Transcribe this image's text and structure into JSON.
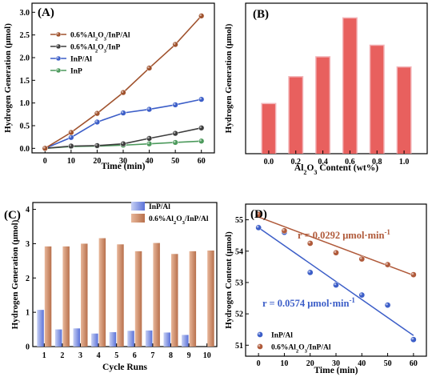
{
  "chart_data": [
    {
      "panel": "(A)",
      "type": "line",
      "xlabel": "Time (min)",
      "ylabel": "Hydrogen Generation (μmol)",
      "xlim": [
        -5,
        65
      ],
      "ylim": [
        -0.1,
        3.2
      ],
      "x": [
        0,
        10,
        20,
        30,
        40,
        50,
        60
      ],
      "xticks": [
        "0",
        "10",
        "20",
        "30",
        "40",
        "50",
        "60"
      ],
      "yticks": [
        "0.0",
        "0.5",
        "1.0",
        "1.5",
        "2.0",
        "2.5",
        "3.0"
      ],
      "legend_position": "top-left",
      "series": [
        {
          "name": "0.6%Al2O3/InP/Al",
          "color": "#a0522d",
          "values": [
            0.0,
            0.35,
            0.77,
            1.23,
            1.77,
            2.29,
            2.92
          ]
        },
        {
          "name": "0.6%Al2O3/InP",
          "color": "#3d3d3d",
          "values": [
            0.0,
            0.05,
            0.06,
            0.1,
            0.22,
            0.33,
            0.45
          ]
        },
        {
          "name": "InP/Al",
          "color": "#3c5ec8",
          "values": [
            0.0,
            0.24,
            0.58,
            0.78,
            0.86,
            0.96,
            1.08
          ]
        },
        {
          "name": "InP",
          "color": "#4c9a5c",
          "values": [
            0.0,
            0.04,
            0.05,
            0.07,
            0.1,
            0.13,
            0.16
          ]
        }
      ]
    },
    {
      "panel": "(B)",
      "type": "bar",
      "xlabel": "Al2O3 Content (wt%)",
      "ylabel": "Hydrogen Generation (μmol)",
      "categories": [
        "0.0",
        "0.2",
        "0.4",
        "0.6",
        "0.8",
        "1.0"
      ],
      "values": [
        1.07,
        1.65,
        2.08,
        2.92,
        2.33,
        1.86
      ],
      "ylim": [
        0,
        3.25
      ],
      "yticks": [],
      "color": "#e8605e"
    },
    {
      "panel": "(C)",
      "type": "bar",
      "xlabel": "Cycle Runs",
      "ylabel": "Hydrogen Generation (μmol)",
      "categories": [
        "1",
        "2",
        "3",
        "4",
        "5",
        "6",
        "7",
        "8",
        "9",
        "10"
      ],
      "ylim": [
        0,
        4.2
      ],
      "yticks": [
        "0",
        "1",
        "2",
        "3",
        "4"
      ],
      "legend_position": "top-right",
      "series": [
        {
          "name": "InP/Al",
          "color": "#6a82dc",
          "values": [
            1.07,
            0.5,
            0.53,
            0.38,
            0.42,
            0.46,
            0.47,
            0.41,
            0.34,
            null
          ]
        },
        {
          "name": "0.6%Al2O3/InP/Al",
          "color": "#c98866",
          "values": [
            2.92,
            2.92,
            3.0,
            3.16,
            2.98,
            2.78,
            3.02,
            2.7,
            2.78,
            2.8
          ]
        }
      ]
    },
    {
      "panel": "(D)",
      "type": "scatter",
      "xlabel": "Time (min)",
      "ylabel": "Hydrogen Content (μmol)",
      "xlim": [
        -5,
        65
      ],
      "ylim": [
        50.65,
        55.5
      ],
      "x": [
        0,
        10,
        20,
        30,
        40,
        50,
        60
      ],
      "xticks": [
        "0",
        "10",
        "20",
        "30",
        "40",
        "50",
        "60"
      ],
      "yticks": [
        "51",
        "52",
        "53",
        "54",
        "55"
      ],
      "legend_position": "bottom-left",
      "series": [
        {
          "name": "InP/Al",
          "color": "#3c5ec8",
          "values": [
            54.75,
            54.6,
            53.32,
            52.92,
            52.6,
            52.28,
            51.18
          ],
          "fit": [
            54.75,
            51.31
          ],
          "annotation": "r = 0.0574 μmol·min",
          "annotation_sup": "-1"
        },
        {
          "name": "0.6%Al2O3/InP/Al",
          "color": "#b05a3a",
          "values": [
            55.17,
            54.65,
            54.25,
            53.95,
            53.75,
            53.57,
            53.25
          ],
          "fit": [
            55.09,
            53.23
          ],
          "annotation": "r = 0.0292 μmol·min",
          "annotation_sup": "-1"
        }
      ]
    }
  ]
}
